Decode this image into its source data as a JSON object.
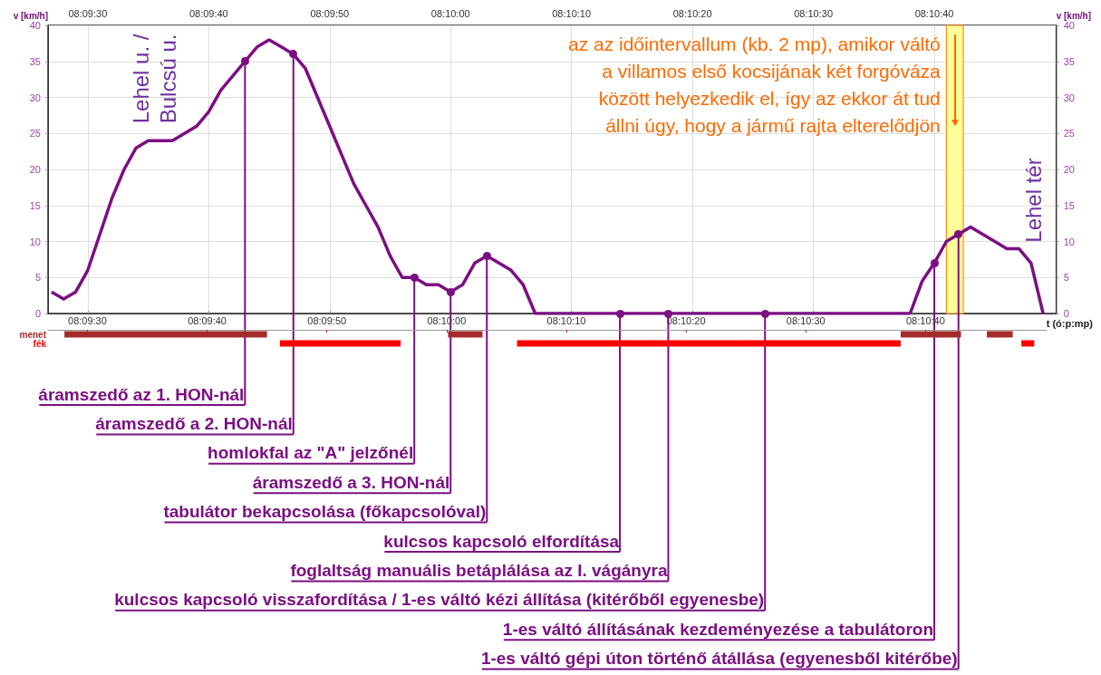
{
  "chart_data": [
    {
      "type": "line",
      "ylabel": "v [km/h]",
      "y2label": "v [km/h]",
      "x": [
        8.1575,
        8.157778,
        8.158056,
        8.158333,
        8.158611,
        8.158889,
        8.159167,
        8.159444,
        8.159722,
        8.16,
        8.160278,
        8.160556,
        8.160833,
        8.161111,
        8.161389,
        8.161667,
        8.161944,
        8.162222,
        8.1625,
        8.162778,
        8.163056,
        8.163333,
        8.163611,
        8.163889,
        8.164167,
        8.164444,
        8.164722,
        8.165,
        8.165278,
        8.165556,
        8.165833,
        8.166111,
        8.166389,
        8.166667,
        8.166944,
        8.167222,
        8.1675,
        8.167778,
        8.168056,
        8.168333,
        8.168611,
        8.177222,
        8.1775,
        8.177778,
        8.178056,
        8.178333,
        8.178611,
        8.178889,
        8.179167,
        8.179444,
        8.179722,
        8.18,
        8.180278
      ],
      "series": [
        {
          "color": "#7b0f82",
          "values": [
            3,
            2,
            3,
            6,
            11,
            16,
            20,
            23,
            24,
            24,
            24,
            25,
            26,
            28,
            31,
            33,
            35,
            37,
            38,
            37,
            36,
            34,
            30,
            26,
            22,
            18,
            15,
            12,
            8,
            5,
            5,
            4,
            4,
            3,
            4,
            7,
            8,
            7,
            6,
            4,
            0,
            0,
            4.5,
            7,
            10,
            11,
            12,
            11,
            10,
            9,
            9,
            7,
            0
          ]
        }
      ],
      "xlim": [
        8.15742,
        8.18058
      ],
      "xticks": [
        {
          "value": 8.158333,
          "label": "08:09:30"
        },
        {
          "value": 8.161111,
          "label": "08:09:40"
        },
        {
          "value": 8.163889,
          "label": "08:09:50"
        },
        {
          "value": 8.166667,
          "label": "08:10:00"
        },
        {
          "value": 8.169444,
          "label": "08:10:10"
        },
        {
          "value": 8.172222,
          "label": "08:10:20"
        },
        {
          "value": 8.175,
          "label": "08:10:30"
        },
        {
          "value": 8.177778,
          "label": "08:10:40"
        }
      ],
      "ylim": [
        0,
        40
      ],
      "yticks": [
        0,
        5,
        10,
        15,
        20,
        25,
        30,
        35,
        40
      ],
      "y2lim": [
        0,
        40
      ],
      "y2ticks": [
        0,
        5,
        10,
        15,
        20,
        25,
        30,
        35,
        40
      ],
      "grid": true,
      "bands": [
        {
          "axis": "x",
          "from": 8.178056,
          "to": 8.178444,
          "color": "#ffff99",
          "label": "az az időintervallum (kb. 2 mp), amikor váltó\na villamos első kocsijának két forgóváza\nközött helyezkedik el, így az ekkor át tud\nállni úgy, hogy a jármű rajta elterelődjön"
        }
      ],
      "annotations": [
        "Lehel u. /\nBulcsú u.",
        "Lehel tér",
        {
          "text": "áramszedő az 1. HON-nál",
          "x": 8.161944,
          "y": 35
        },
        {
          "text": "áramszedő a 2. HON-nál",
          "x": 8.163056,
          "y": 36
        },
        {
          "text": "homlokfal az \"A\" jelzőnél",
          "x": 8.165833,
          "y": 5
        },
        {
          "text": "áramszedő a 3. HON-nál",
          "x": 8.166667,
          "y": 3
        },
        {
          "text": "tabulátor bekapcsolása (főkapcsolóval)",
          "x": 8.1675,
          "y": 8
        },
        {
          "text": "kulcsos kapcsoló elfordítása",
          "x": 8.170556,
          "y": 0
        },
        {
          "text": "foglaltság manuális betáplálása az I. vágányra",
          "x": 8.171667,
          "y": 0
        },
        {
          "text": "kulcsos kapcsoló visszafordítása / 1-es váltó kézi állítása (kitérőből egyenesbe)",
          "x": 8.173889,
          "y": 0
        },
        {
          "text": "1-es váltó állításának kezdeményezése a tabulátoron",
          "x": 8.177778,
          "y": 7
        },
        {
          "text": "1-es váltó gépi úton történő átállása (egyenesből kitérőbe)",
          "x": 8.178333,
          "y": 11
        }
      ]
    },
    {
      "type": "bar",
      "orientation": "horizontal",
      "xlabel": "t (ó:p:mp)",
      "categories": [
        "menet",
        "fék"
      ],
      "xlim": [
        8.15742,
        8.18058
      ],
      "xticks": [
        {
          "value": 8.158333,
          "label": "08:09:30"
        },
        {
          "value": 8.161111,
          "label": "08:09:40"
        },
        {
          "value": 8.163889,
          "label": "08:09:50"
        },
        {
          "value": 8.166667,
          "label": "08:10:00"
        },
        {
          "value": 8.169444,
          "label": "08:10:10"
        },
        {
          "value": 8.172222,
          "label": "08:10:20"
        },
        {
          "value": 8.175,
          "label": "08:10:30"
        },
        {
          "value": 8.177778,
          "label": "08:10:40"
        }
      ],
      "series": [
        {
          "color": "#a52a2a",
          "base": [
            8.1578,
            null
          ],
          "values": [
            0.0047,
            null
          ]
        },
        {
          "color": "#a52a2a",
          "base": [
            8.1667,
            null
          ],
          "values": [
            0.0008,
            null
          ]
        },
        {
          "color": "#a52a2a",
          "base": [
            8.1772,
            null
          ],
          "values": [
            0.0014,
            null
          ]
        },
        {
          "color": "#a52a2a",
          "base": [
            8.1792,
            null
          ],
          "values": [
            0.0006,
            null
          ]
        },
        {
          "color": "#ff0000",
          "base": [
            null,
            8.1628
          ],
          "values": [
            null,
            0.0028
          ]
        },
        {
          "color": "#ff0000",
          "base": [
            null,
            8.1683
          ],
          "values": [
            null,
            0.0089
          ]
        },
        {
          "color": "#ff0000",
          "base": [
            null,
            8.18
          ],
          "values": [
            null,
            0.0003
          ]
        }
      ]
    }
  ]
}
